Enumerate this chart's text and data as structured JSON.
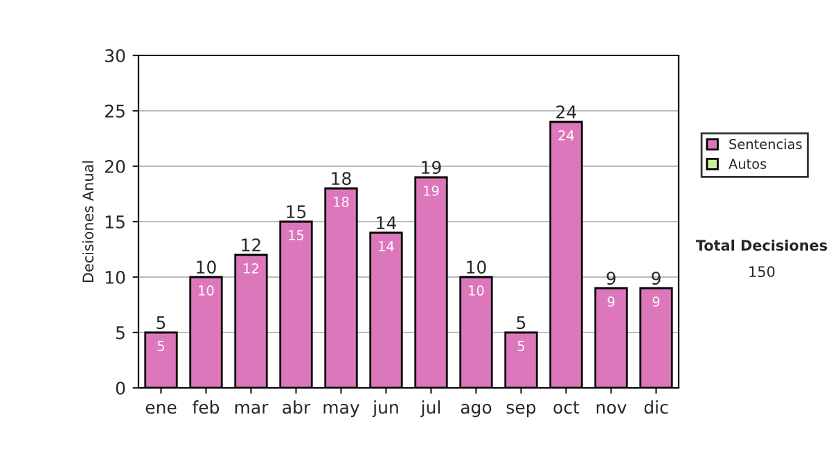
{
  "chart_data": {
    "type": "bar",
    "stacked": true,
    "ylabel": "Decisiones Anual",
    "categories": [
      "ene",
      "feb",
      "mar",
      "abr",
      "may",
      "jun",
      "jul",
      "ago",
      "sep",
      "oct",
      "nov",
      "dic"
    ],
    "series": [
      {
        "name": "Sentencias",
        "color": "#dd77bb",
        "values": [
          5,
          10,
          12,
          15,
          18,
          14,
          19,
          10,
          5,
          24,
          9,
          9
        ]
      },
      {
        "name": "Autos",
        "color": "#ccee99",
        "values": [
          null,
          null,
          null,
          null,
          null,
          null,
          null,
          null,
          null,
          null,
          null,
          null
        ]
      }
    ],
    "ylim": [
      0,
      30
    ],
    "yticks": [
      0,
      5,
      10,
      15,
      20,
      25,
      30
    ],
    "grid": "y",
    "legend": "right",
    "data_labels": true,
    "totals": [
      "5",
      "10",
      "12",
      "15",
      "18",
      "14",
      "19",
      "10",
      "5",
      "24",
      "9",
      "9"
    ],
    "annotations": [
      "Total Decisiones",
      "150"
    ]
  }
}
